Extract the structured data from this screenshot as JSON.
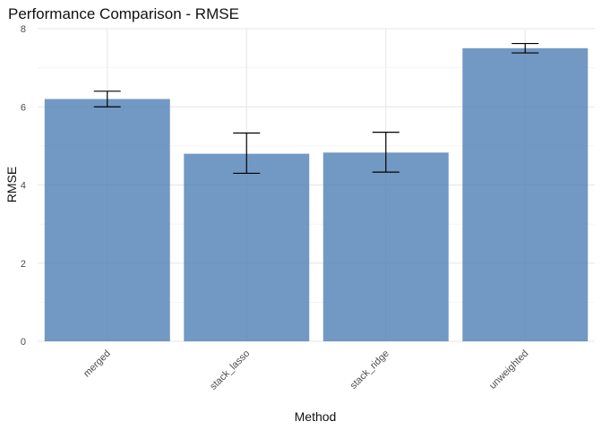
{
  "chart_data": {
    "type": "bar",
    "title": "Performance Comparison - RMSE",
    "xlabel": "Method",
    "ylabel": "RMSE",
    "categories": [
      "merged",
      "stack_lasso",
      "stack_ridge",
      "unweighted"
    ],
    "values": [
      6.2,
      4.8,
      4.83,
      7.5
    ],
    "error_lower": [
      6.0,
      4.3,
      4.33,
      7.38
    ],
    "error_upper": [
      6.4,
      5.33,
      5.35,
      7.62
    ],
    "ylim": [
      0,
      8
    ],
    "yticks": [
      0,
      2,
      4,
      6,
      8
    ],
    "grid": true,
    "bar_color": "#4f7fb4",
    "x_tick_rotation_deg": 45
  }
}
